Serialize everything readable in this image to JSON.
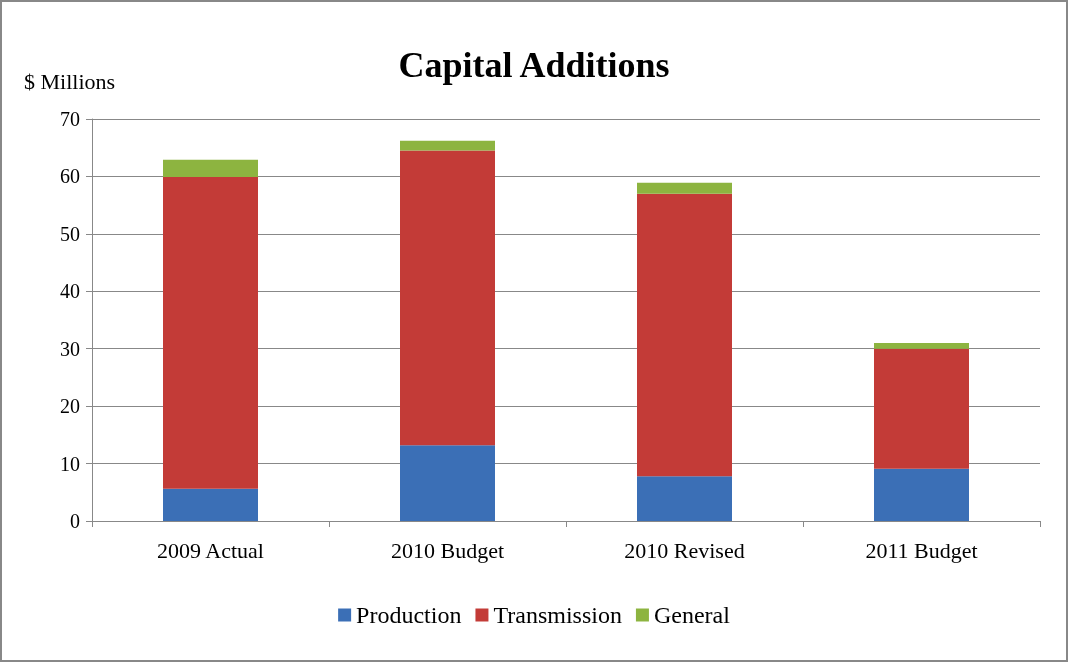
{
  "chart_data": {
    "type": "bar",
    "title": "Capital Additions",
    "ylabel": "$ Millions",
    "stacked": true,
    "categories": [
      "2009 Actual",
      "2010 Budget",
      "2010 Revised",
      "2011 Budget"
    ],
    "series": [
      {
        "name": "Production",
        "color": "#3b6fb6",
        "values": [
          5.6,
          13.2,
          7.8,
          9.1
        ]
      },
      {
        "name": "Transmission",
        "color": "#c33b37",
        "values": [
          54.3,
          51.3,
          49.2,
          20.9
        ]
      },
      {
        "name": "General",
        "color": "#8db440",
        "values": [
          3.0,
          1.7,
          1.9,
          1.0
        ]
      }
    ],
    "ylim": [
      0,
      70
    ],
    "yticks": [
      0,
      10,
      20,
      30,
      40,
      50,
      60,
      70
    ],
    "grid": "y",
    "legend": "bottom"
  }
}
